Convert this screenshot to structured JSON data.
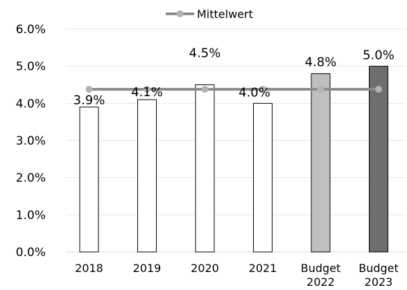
{
  "chart_data": {
    "type": "bar",
    "categories": [
      [
        "2018"
      ],
      [
        "2019"
      ],
      [
        "2020"
      ],
      [
        "2021"
      ],
      [
        "Budget",
        "2022"
      ],
      [
        "Budget",
        "2023"
      ]
    ],
    "series": [
      {
        "values": [
          3.9,
          4.1,
          4.5,
          4.0,
          4.8,
          5.0
        ],
        "data_labels": [
          "3.9%",
          "4.1%",
          "4.5%",
          "4.0%",
          "4.8%",
          "5.0%"
        ],
        "colors": [
          "#ffffff",
          "#ffffff",
          "#ffffff",
          "#ffffff",
          "#bfbfbf",
          "#6e6e6e"
        ],
        "edge_color": "#000000"
      },
      {
        "name": "Mittelwert",
        "type": "line",
        "values": [
          4.38,
          4.38,
          4.38,
          4.38,
          4.38,
          4.38
        ],
        "line_color": "#8c8c8c",
        "marker_color": "#b3b3b3"
      }
    ],
    "y_ticks": [
      "0.0%",
      "1.0%",
      "2.0%",
      "3.0%",
      "4.0%",
      "5.0%",
      "6.0%"
    ],
    "ylim": [
      0,
      6
    ],
    "grid": true,
    "grid_color": "#e6e6e6",
    "legend": {
      "position": "top",
      "entries": [
        "Mittelwert"
      ]
    }
  }
}
